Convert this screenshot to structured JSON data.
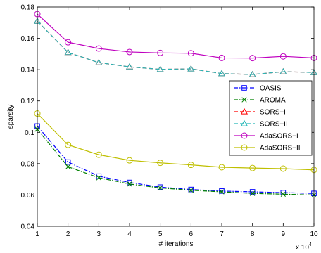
{
  "chart_data": {
    "type": "line",
    "xlabel": "# iterations",
    "ylabel": "sparsity",
    "x_multiplier_label": "x 10",
    "x_multiplier_exp": "4",
    "x": [
      1,
      2,
      3,
      4,
      5,
      6,
      7,
      8,
      9,
      10
    ],
    "xticks": [
      "1",
      "2",
      "3",
      "4",
      "5",
      "6",
      "7",
      "8",
      "9",
      "10"
    ],
    "yticks": [
      "0.04",
      "0.06",
      "0.08",
      "0.1",
      "0.12",
      "0.14",
      "0.16",
      "0.18"
    ],
    "xlim": [
      1,
      10
    ],
    "ylim": [
      0.04,
      0.18
    ],
    "grid": false,
    "legend_position": "right",
    "series": [
      {
        "name": "OASIS",
        "color": "#0000ff",
        "dash": "dashdot",
        "marker": "square",
        "values": [
          0.104,
          0.081,
          0.072,
          0.068,
          0.065,
          0.0635,
          0.0625,
          0.062,
          0.0615,
          0.061
        ]
      },
      {
        "name": "AROMA",
        "color": "#008000",
        "dash": "dashdot",
        "marker": "x",
        "values": [
          0.102,
          0.078,
          0.071,
          0.067,
          0.0645,
          0.063,
          0.062,
          0.061,
          0.0605,
          0.06
        ]
      },
      {
        "name": "SORS−I",
        "color": "#ff0000",
        "dash": "dashed",
        "marker": "triangle",
        "values": [
          0.171,
          0.151,
          0.1445,
          0.1418,
          0.1402,
          0.1405,
          0.1375,
          0.1369,
          0.1387,
          0.1382
        ]
      },
      {
        "name": "SORS−II",
        "color": "#26b8b8",
        "dash": "dashed",
        "marker": "triangle",
        "values": [
          0.171,
          0.151,
          0.1445,
          0.1418,
          0.1402,
          0.1405,
          0.1375,
          0.1369,
          0.1387,
          0.1382
        ]
      },
      {
        "name": "AdaSORS−I",
        "color": "#bf00bf",
        "dash": "solid",
        "marker": "circle",
        "values": [
          0.1755,
          0.1575,
          0.1535,
          0.1513,
          0.1507,
          0.1505,
          0.1475,
          0.1474,
          0.1485,
          0.1475
        ]
      },
      {
        "name": "AdaSORS−II",
        "color": "#bfbf00",
        "dash": "solid",
        "marker": "circle",
        "values": [
          0.112,
          0.092,
          0.0857,
          0.0821,
          0.0805,
          0.0792,
          0.0777,
          0.0772,
          0.0768,
          0.076
        ]
      }
    ]
  }
}
